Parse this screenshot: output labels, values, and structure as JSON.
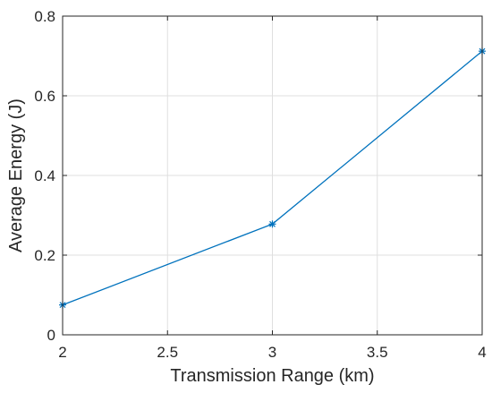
{
  "chart_data": {
    "type": "line",
    "xlabel": "Transmission Range (km)",
    "ylabel": "Average Energy (J)",
    "xlim": [
      2,
      4
    ],
    "ylim": [
      0,
      0.8
    ],
    "xticks": [
      2,
      2.5,
      3,
      3.5,
      4
    ],
    "yticks": [
      0,
      0.2,
      0.4,
      0.6,
      0.8
    ],
    "xtick_labels": [
      "2",
      "2.5",
      "3",
      "3.5",
      "4"
    ],
    "ytick_labels": [
      "0",
      "0.2",
      "0.4",
      "0.6",
      "0.8"
    ],
    "grid": true,
    "series": [
      {
        "x": [
          2,
          3,
          4
        ],
        "y": [
          0.075,
          0.278,
          0.712
        ],
        "color": "#0072bd",
        "marker": "asterisk"
      }
    ]
  }
}
